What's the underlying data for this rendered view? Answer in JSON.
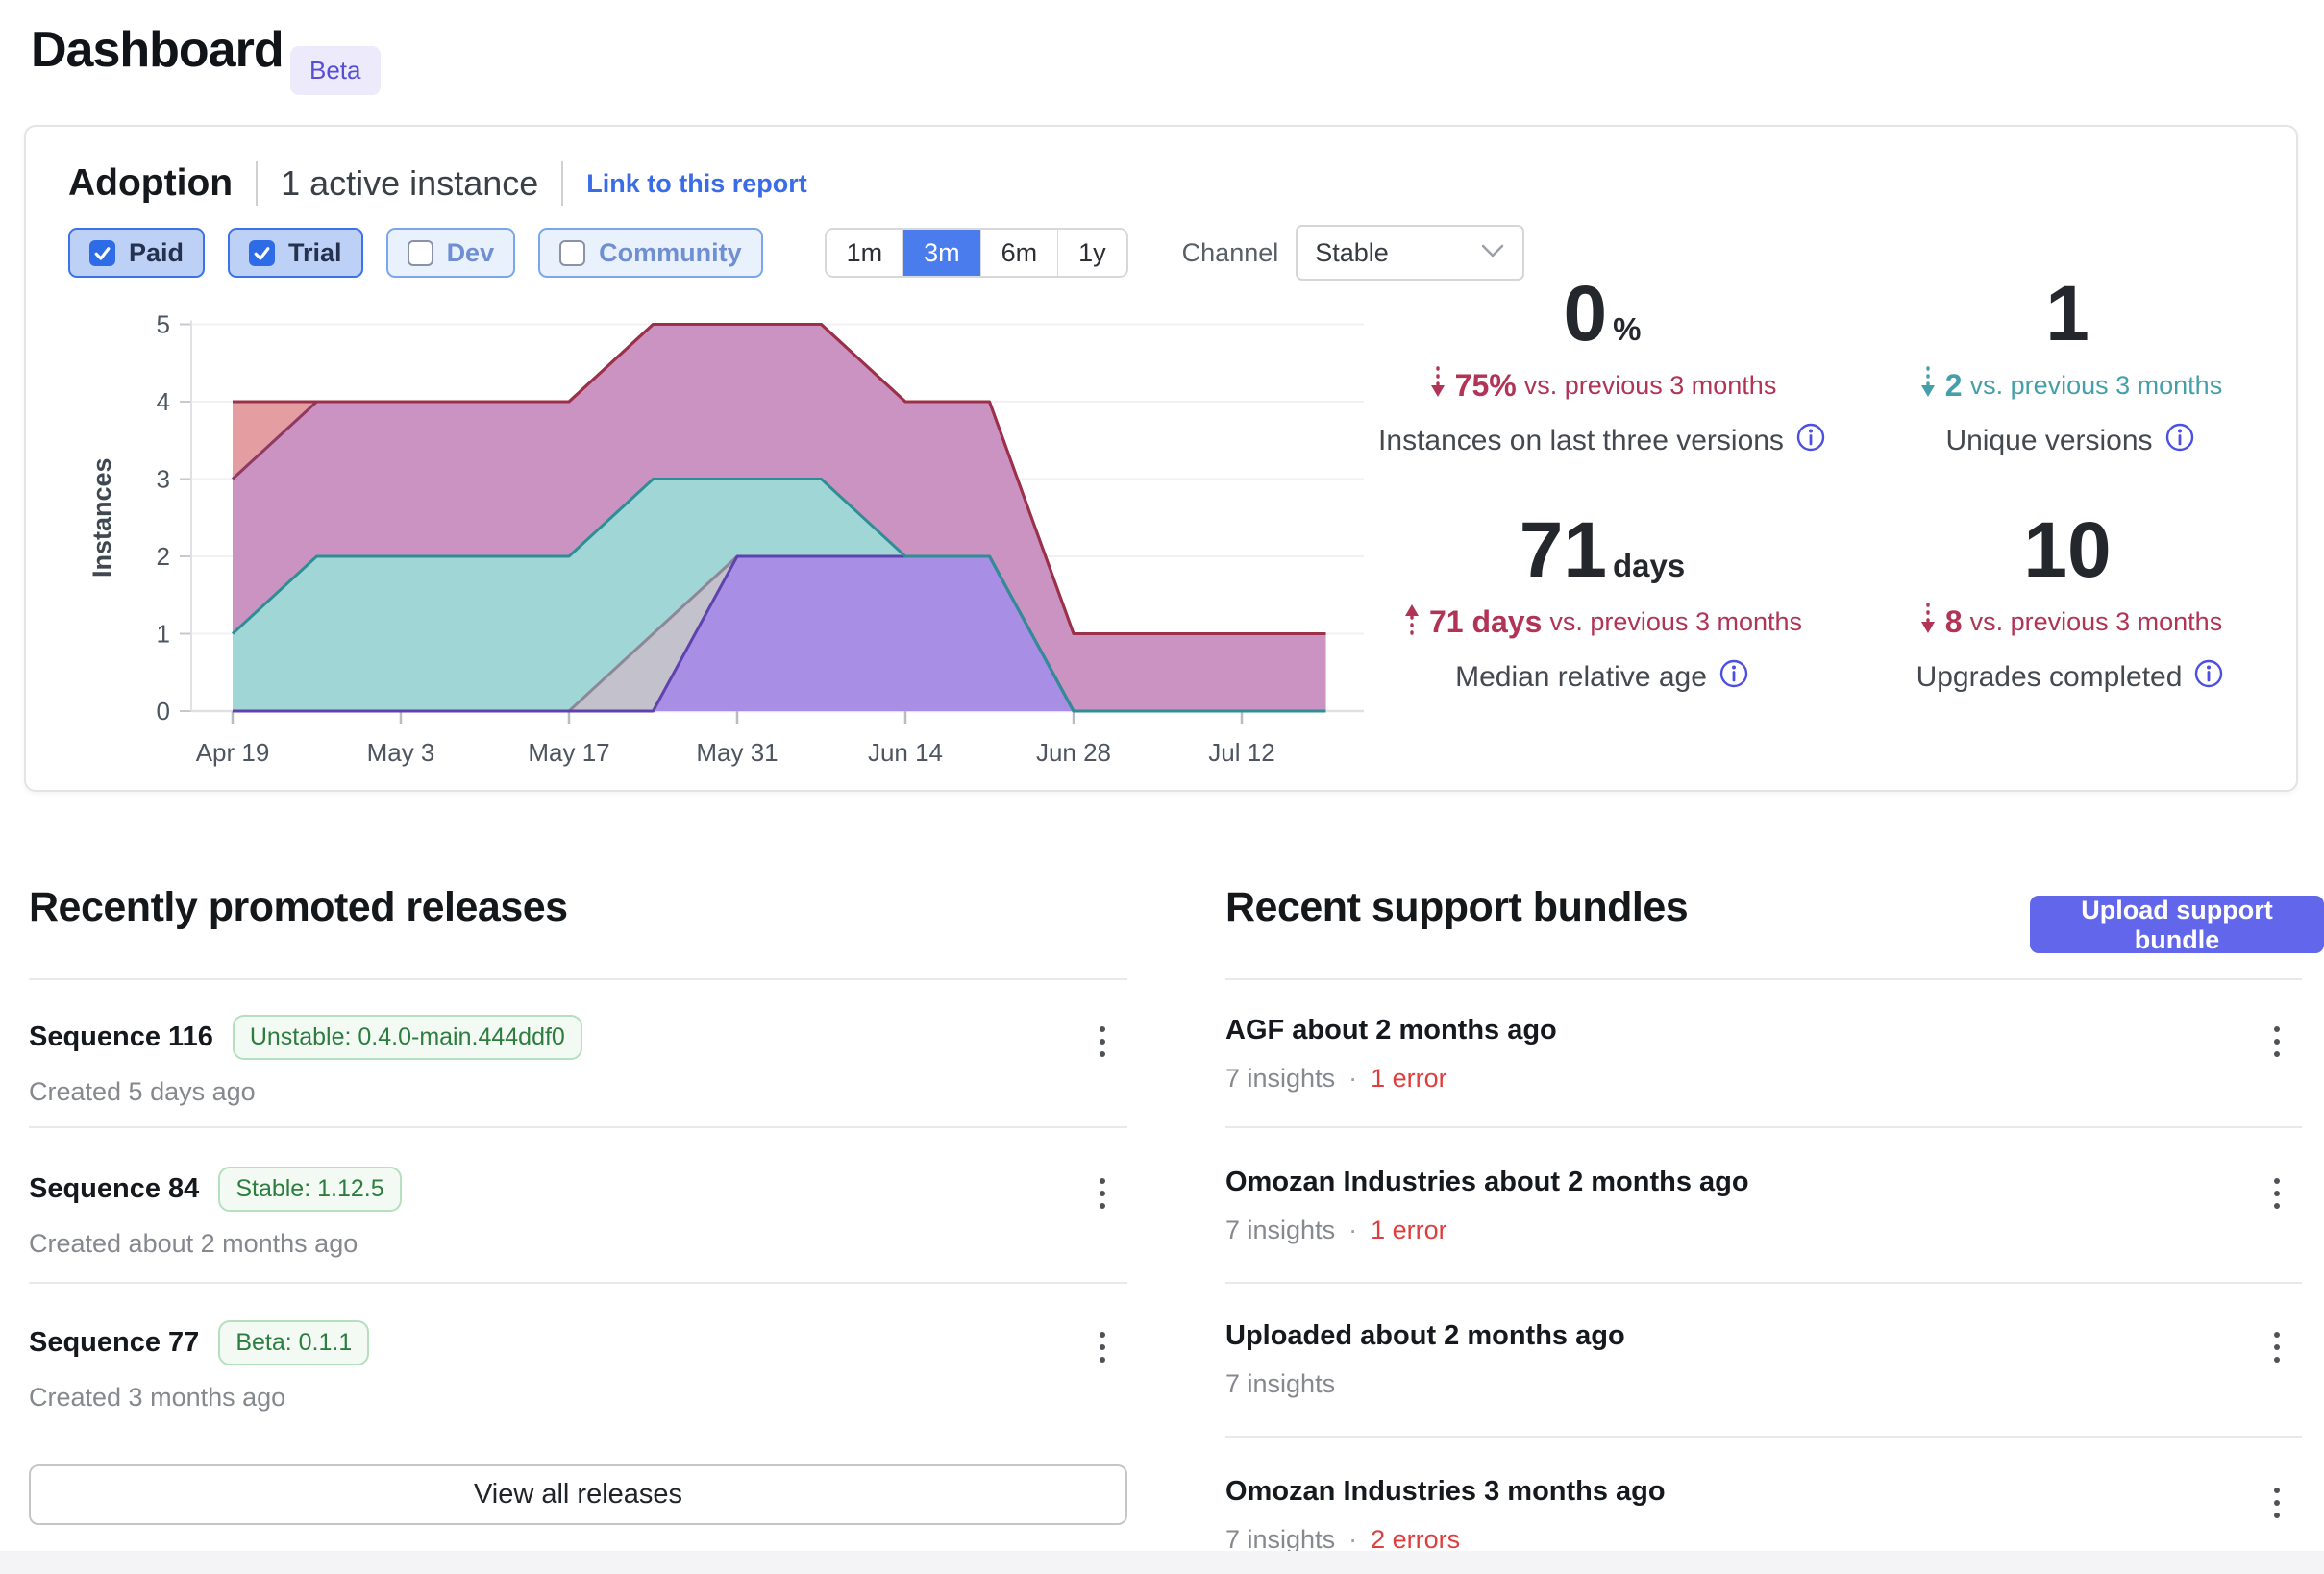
{
  "page": {
    "title": "Dashboard",
    "beta_badge": "Beta"
  },
  "adoption": {
    "title": "Adoption",
    "active_instances": "1 active instance",
    "report_link": "Link to this report",
    "filters": [
      {
        "label": "Paid",
        "checked": true
      },
      {
        "label": "Trial",
        "checked": true
      },
      {
        "label": "Dev",
        "checked": false
      },
      {
        "label": "Community",
        "checked": false
      }
    ],
    "ranges": [
      {
        "label": "1m",
        "selected": false
      },
      {
        "label": "3m",
        "selected": true
      },
      {
        "label": "6m",
        "selected": false
      },
      {
        "label": "1y",
        "selected": false
      }
    ],
    "channel_label": "Channel",
    "channel_value": "Stable",
    "stats": [
      {
        "value": "0",
        "unit": "%",
        "direction": "down",
        "delta_color": "#b13355",
        "delta": "75%",
        "delta_suffix": "vs. previous 3 months",
        "label": "Instances on last three versions"
      },
      {
        "value": "1",
        "unit": "",
        "direction": "down",
        "delta_color": "#44a0a8",
        "delta": "2",
        "delta_suffix": "vs. previous 3 months",
        "label": "Unique versions"
      },
      {
        "value": "71",
        "unit": "days",
        "direction": "up",
        "delta_color": "#b13355",
        "delta": "71 days",
        "delta_suffix": "vs. previous 3 months",
        "label": "Median relative age"
      },
      {
        "value": "10",
        "unit": "",
        "direction": "down",
        "delta_color": "#b13355",
        "delta": "8",
        "delta_suffix": "vs. previous 3 months",
        "label": "Upgrades completed"
      }
    ]
  },
  "chart_data": {
    "type": "area",
    "title": "",
    "xlabel": "",
    "ylabel": "Instances",
    "ylim": [
      0,
      5
    ],
    "yticks": [
      0,
      1,
      2,
      3,
      4,
      5
    ],
    "grid": true,
    "legend": false,
    "x": [
      "Apr 19",
      "Apr 26",
      "May 3",
      "May 10",
      "May 17",
      "May 24",
      "May 31",
      "Jun 7",
      "Jun 14",
      "Jun 21",
      "Jun 28",
      "Jul 5",
      "Jul 12",
      "Jul 19"
    ],
    "x_tick_labels": [
      "Apr 19",
      "May 3",
      "May 17",
      "May 31",
      "Jun 14",
      "Jun 28",
      "Jul 12"
    ],
    "series": [
      {
        "name": "version-red",
        "fill": "#e39a9e",
        "stroke": "#9d3049",
        "values": [
          4,
          4,
          4,
          4,
          4,
          5,
          5,
          5,
          4,
          4,
          1,
          1,
          1,
          1
        ]
      },
      {
        "name": "version-mauve",
        "fill": "#ca93c3",
        "stroke": "#8f3963",
        "values": [
          3,
          4,
          4,
          4,
          4,
          5,
          5,
          5,
          4,
          4,
          1,
          1,
          1,
          1
        ]
      },
      {
        "name": "version-teal",
        "fill": "#9edad6",
        "stroke": "#2f8d95",
        "values": [
          1,
          2,
          2,
          2,
          2,
          3,
          3,
          3,
          2,
          2,
          0,
          0,
          0,
          0
        ]
      },
      {
        "name": "version-gray",
        "fill": "#c5c0ca",
        "stroke": "#8d8899",
        "values": [
          0,
          0,
          0,
          0,
          0,
          1,
          2,
          2,
          2,
          2,
          0,
          0,
          0,
          0
        ]
      },
      {
        "name": "version-violet",
        "fill": "#a78ce6",
        "stroke": "#5e42ae",
        "values": [
          0,
          0,
          0,
          0,
          0,
          0,
          2,
          2,
          2,
          2,
          0,
          0,
          0,
          0
        ]
      }
    ]
  },
  "releases": {
    "heading": "Recently promoted releases",
    "view_all": "View all releases",
    "items": [
      {
        "title": "Sequence 116",
        "badge": "Unstable: 0.4.0-main.444ddf0",
        "meta": "Created 5 days ago"
      },
      {
        "title": "Sequence 84",
        "badge": "Stable: 1.12.5",
        "meta": "Created about 2 months ago"
      },
      {
        "title": "Sequence 77",
        "badge": "Beta: 0.1.1",
        "meta": "Created 3 months ago"
      }
    ]
  },
  "bundles": {
    "heading": "Recent support bundles",
    "upload_button": "Upload support bundle",
    "items": [
      {
        "title": "AGF about 2 months ago",
        "insights": "7 insights",
        "errors": "1 error"
      },
      {
        "title": "Omozan Industries about 2 months ago",
        "insights": "7 insights",
        "errors": "1 error"
      },
      {
        "title": "Uploaded about 2 months ago",
        "insights": "7 insights",
        "errors": ""
      },
      {
        "title": "Omozan Industries 3 months ago",
        "insights": "7 insights",
        "errors": "2 errors"
      }
    ]
  },
  "colors": {
    "accent_blue": "#3a6ce8",
    "selected_range": "#4a7ced",
    "upload_button": "#6266ea",
    "delta_red": "#b13355",
    "delta_teal": "#44a0a8",
    "error_red": "#df3e3e",
    "badge_green": "#2c7d3f",
    "info_icon": "#4b50e3"
  }
}
